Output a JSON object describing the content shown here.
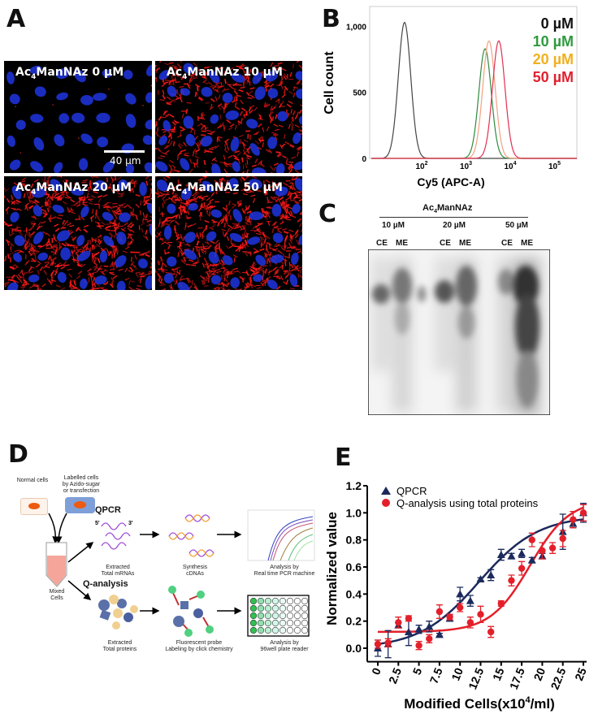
{
  "panels": {
    "a": "A",
    "b": "B",
    "c": "C",
    "d": "D",
    "e": "E"
  },
  "panel_a": {
    "tiles": [
      {
        "prefix": "Ac",
        "sub": "4",
        "suffix": "ManNAz 0 µM",
        "red_level": 0
      },
      {
        "prefix": "Ac",
        "sub": "4",
        "suffix": "ManNAz 10 µM",
        "red_level": 0.6
      },
      {
        "prefix": "Ac",
        "sub": "4",
        "suffix": "ManNAz 20 µM",
        "red_level": 0.85
      },
      {
        "prefix": "Ac",
        "sub": "4",
        "suffix": "ManNAz 50 µM",
        "red_level": 1
      }
    ],
    "scale_bar": "40 µm",
    "colors": {
      "nuclei": "#1f35e0",
      "membrane": "#ff1a1a",
      "background": "#000000"
    }
  },
  "panel_c": {
    "compound_prefix": "Ac",
    "compound_sub": "4",
    "compound_suffix": "ManNAz",
    "concentrations": [
      "10 µM",
      "20 µM",
      "50 µM"
    ],
    "lanes": [
      "CE",
      "ME",
      "CE",
      "ME",
      "CE",
      "ME"
    ]
  },
  "panel_d": {
    "normal_cells": "Normal cells",
    "labelled_cells": [
      "Labelled cells",
      "by Azido-sugar",
      "or transfection"
    ],
    "qpcr": "QPCR",
    "q_analysis": "Q-analysis",
    "mixed_cells": [
      "Mixed",
      "Cells"
    ],
    "extracted_mrna": [
      "Extracted",
      "Total mRNAs"
    ],
    "synthesis": [
      "Synthesis",
      "cDNAs"
    ],
    "pcr_machine": [
      "Analysis by",
      "Real time PCR machine"
    ],
    "extracted_proteins": [
      "Extracted",
      "Total proteins"
    ],
    "probe": [
      "Fluorescent probe",
      "Labeling by click chemistry"
    ],
    "plate_reader": [
      "Analysis by",
      "96well plate reader"
    ],
    "prime5": "5'",
    "prime3": "3'"
  },
  "chart_data": [
    {
      "type": "line",
      "panel": "B",
      "xlabel": "Cy5 (APC-A)",
      "ylabel": "Cell count",
      "xscale": "log",
      "xlim": [
        10,
        200000
      ],
      "ylim": [
        0,
        1150
      ],
      "xticks": [
        {
          "v": 100,
          "base": "10",
          "exp": "2"
        },
        {
          "v": 1000,
          "base": "10",
          "exp": "3"
        },
        {
          "v": 10000,
          "base": "10",
          "exp": "4"
        },
        {
          "v": 100000,
          "base": "10",
          "exp": "5"
        }
      ],
      "yticks": [
        {
          "v": 0,
          "label": "0"
        },
        {
          "v": 500,
          "label": "500"
        },
        {
          "v": 1000,
          "label": "1,000"
        }
      ],
      "legend_position": "top-right",
      "grid": false,
      "series": [
        {
          "name": "0 µM",
          "color": "#111111",
          "line_color": "#444444",
          "peak_x": 41,
          "peak_count": 1030
        },
        {
          "name": "10 µM",
          "color": "#2e9a3e",
          "line_color": "#2e8b3e",
          "peak_x": 2700,
          "peak_count": 830
        },
        {
          "name": "20 µM",
          "color": "#f0b020",
          "line_color": "#f4a080",
          "peak_x": 3300,
          "peak_count": 890
        },
        {
          "name": "50 µM",
          "color": "#e02030",
          "line_color": "#e03050",
          "peak_x": 5500,
          "peak_count": 890
        }
      ]
    },
    {
      "type": "scatter",
      "panel": "E",
      "xlabel_main": "Modified Cells(x10",
      "xlabel_exp": "4",
      "xlabel_tail": "/ml)",
      "ylabel": "Normalized value",
      "xlim": [
        0,
        25
      ],
      "ylim": [
        -0.1,
        1.2
      ],
      "xticks": [
        "0",
        "2.5",
        "5",
        "7.5",
        "10",
        "12.5",
        "15",
        "17.5",
        "20",
        "22.5",
        "25"
      ],
      "yticks": [
        "0.0",
        "0.2",
        "0.4",
        "0.6",
        "0.8",
        "1.0",
        "1.2"
      ],
      "legend_position": "top-left",
      "grid": false,
      "series": [
        {
          "name": "QPCR",
          "marker": "triangle",
          "color": "#1c2a5c",
          "x": [
            0,
            1.25,
            2.5,
            3.75,
            5,
            6.25,
            7.5,
            8.75,
            10,
            11.25,
            12.5,
            13.75,
            15,
            16.25,
            17.5,
            18.75,
            20,
            22.5,
            23.75,
            25
          ],
          "y": [
            0.0,
            0.03,
            0.17,
            0.12,
            0.14,
            0.16,
            0.1,
            0.22,
            0.4,
            0.35,
            0.51,
            0.54,
            0.69,
            0.68,
            0.7,
            0.65,
            0.68,
            0.86,
            0.92,
            1.0
          ],
          "err": [
            0.06,
            0.1,
            0.02,
            0.1,
            0.03,
            0.04,
            0.01,
            0.02,
            0.05,
            0.04,
            0.01,
            0.04,
            0.04,
            0.02,
            0.03,
            0.02,
            0.02,
            0.13,
            0.03,
            0.07
          ]
        },
        {
          "name": "Q-analysis using total proteins",
          "marker": "circle",
          "color": "#e3202a",
          "x": [
            0,
            1.25,
            2.5,
            3.75,
            5,
            6.25,
            7.5,
            8.75,
            10,
            11.25,
            12.5,
            13.75,
            15,
            16.25,
            17.5,
            18.75,
            20,
            21.25,
            22.5,
            23.75,
            25
          ],
          "y": [
            0.03,
            0.04,
            0.19,
            0.22,
            0.02,
            0.07,
            0.27,
            0.23,
            0.3,
            0.19,
            0.25,
            0.12,
            0.33,
            0.5,
            0.59,
            0.8,
            0.72,
            0.74,
            0.81,
            0.95,
            1.0
          ],
          "err": [
            0.03,
            0.03,
            0.04,
            0.02,
            0.03,
            0.03,
            0.05,
            0.02,
            0.03,
            0.04,
            0.06,
            0.04,
            0.02,
            0.04,
            0.05,
            0.05,
            0.06,
            0.04,
            0.06,
            0.06,
            0.06
          ]
        }
      ]
    }
  ]
}
